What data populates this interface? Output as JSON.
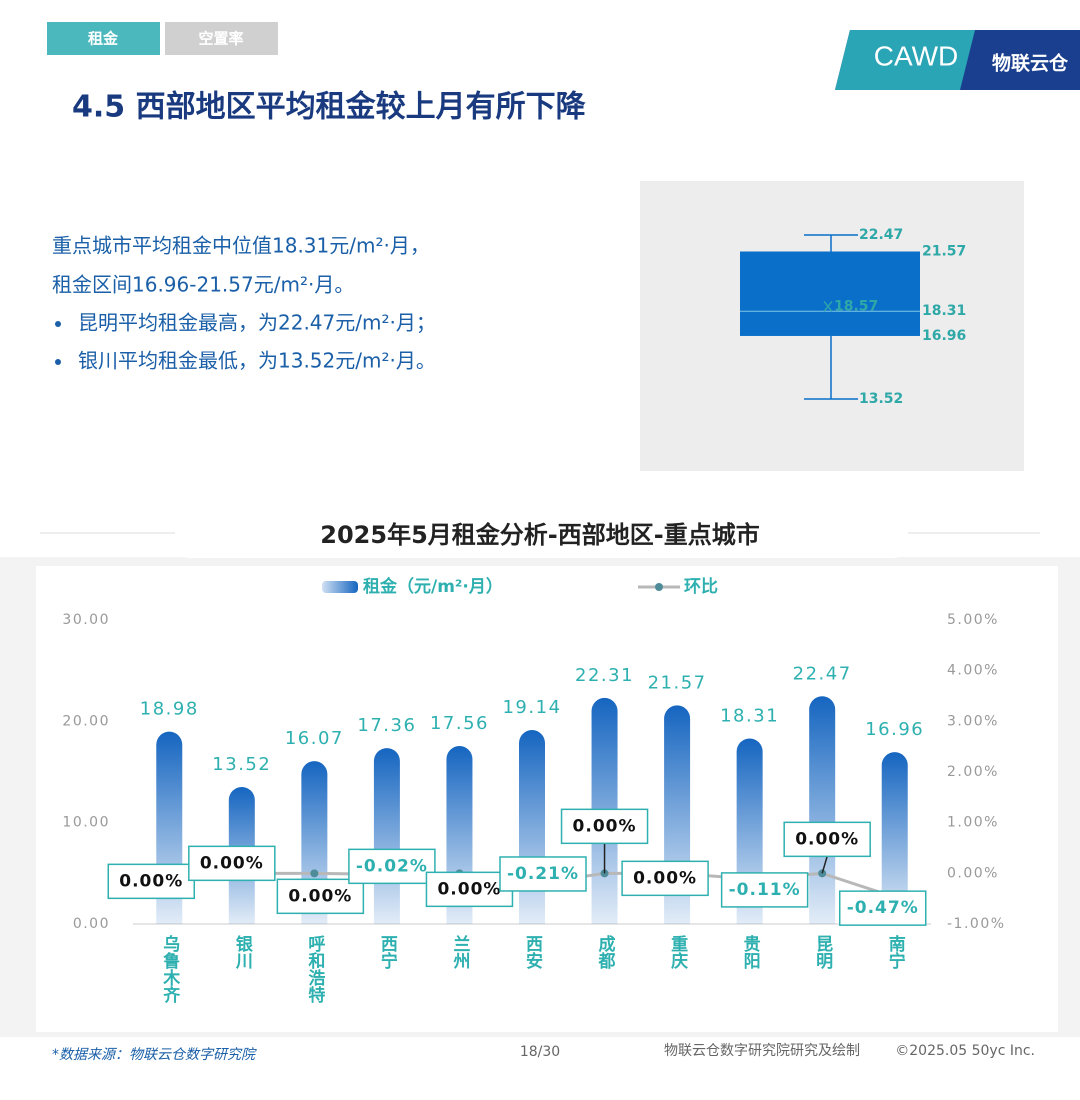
{
  "tabs": [
    "租金",
    "空置率"
  ],
  "logo": {
    "text": "CAWD",
    "brand": "物联云仓"
  },
  "heading": "4.5 西部地区平均租金较上月有所下降",
  "summary": [
    "重点城市平均租金中位值18.31元/m²·月，",
    "租金区间16.96-21.57元/m²·月。"
  ],
  "bullets": [
    "昆明平均租金最高，为22.47元/m²·月；",
    "银川平均租金最低，为13.52元/m²·月。"
  ],
  "chart_data": [
    {
      "type": "box",
      "min": 13.52,
      "q1": 16.96,
      "median": 18.31,
      "mean": 18.57,
      "q3": 21.57,
      "max": 22.47,
      "color": "#0a6fc9",
      "label_color": "#2fa8a8"
    },
    {
      "type": "bar",
      "title": "2025年5月租金分析-西部地区-重点城市",
      "categories": [
        "乌鲁木齐",
        "银川",
        "呼和浩特",
        "西宁",
        "兰州",
        "西安",
        "成都",
        "重庆",
        "贵阳",
        "昆明",
        "南宁"
      ],
      "series": [
        {
          "name": "租金（元/m²·月）",
          "color": "#1565c0",
          "values": [
            18.98,
            13.52,
            16.07,
            17.36,
            17.56,
            19.14,
            22.31,
            21.57,
            18.31,
            22.47,
            16.96
          ]
        },
        {
          "name": "环比",
          "type": "line",
          "axis": "y2",
          "color": "#b8b8b8",
          "marker_color": "#4e8c99",
          "values": [
            0,
            0,
            0,
            -0.02,
            0,
            -0.21,
            0,
            0,
            -0.11,
            0,
            -0.47
          ],
          "value_labels": [
            "0.00%",
            "0.00%",
            "0.00%",
            "-0.02%",
            "0.00%",
            "-0.21%",
            "0.00%",
            "0.00%",
            "-0.11%",
            "0.00%",
            "-0.47%"
          ]
        }
      ],
      "ylim": [
        0,
        30
      ],
      "yticks": [
        {
          "value": 0,
          "label": "0.00"
        },
        {
          "value": 10,
          "label": "10.00"
        },
        {
          "value": 20,
          "label": "20.00"
        },
        {
          "value": 30,
          "label": "30.00"
        }
      ],
      "y2lim": [
        -1,
        5
      ],
      "y2ticks": [
        {
          "value": -1,
          "label": "-1.00%"
        },
        {
          "value": 0,
          "label": "0.00%"
        },
        {
          "value": 1,
          "label": "1.00%"
        },
        {
          "value": 2,
          "label": "2.00%"
        },
        {
          "value": 3,
          "label": "3.00%"
        },
        {
          "value": 4,
          "label": "4.00%"
        },
        {
          "value": 5,
          "label": "5.00%"
        }
      ],
      "legend": "top",
      "label_color": "#2fb0b0"
    }
  ],
  "footer": {
    "source": "*数据来源：物联云仓数字研究院",
    "page": "18/30",
    "credit": "物联云仓数字研究院研究及绘制",
    "copyright": "©2025.05 50yc Inc."
  }
}
